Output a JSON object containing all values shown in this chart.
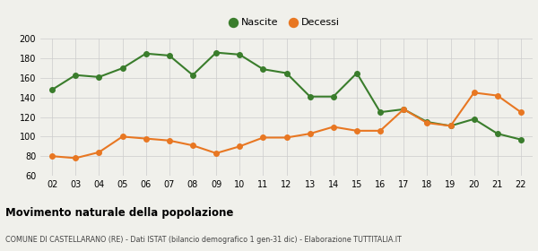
{
  "years": [
    2,
    3,
    4,
    5,
    6,
    7,
    8,
    9,
    10,
    11,
    12,
    13,
    14,
    15,
    16,
    17,
    18,
    19,
    20,
    21,
    22
  ],
  "nascite": [
    148,
    163,
    161,
    170,
    185,
    183,
    163,
    186,
    184,
    169,
    165,
    141,
    141,
    165,
    125,
    128,
    115,
    111,
    118,
    103,
    97
  ],
  "decessi": [
    80,
    78,
    84,
    100,
    98,
    96,
    91,
    83,
    90,
    99,
    99,
    103,
    110,
    106,
    106,
    128,
    114,
    111,
    145,
    142,
    125
  ],
  "nascite_color": "#3a7d2c",
  "decessi_color": "#e87722",
  "background_color": "#f0f0eb",
  "grid_color": "#cccccc",
  "ylim": [
    60,
    200
  ],
  "yticks": [
    60,
    80,
    100,
    120,
    140,
    160,
    180,
    200
  ],
  "title": "Movimento naturale della popolazione",
  "subtitle": "COMUNE DI CASTELLARANO (RE) - Dati ISTAT (bilancio demografico 1 gen-31 dic) - Elaborazione TUTTITALIA.IT",
  "legend_nascite": "Nascite",
  "legend_decessi": "Decessi",
  "marker_size": 4,
  "line_width": 1.5
}
